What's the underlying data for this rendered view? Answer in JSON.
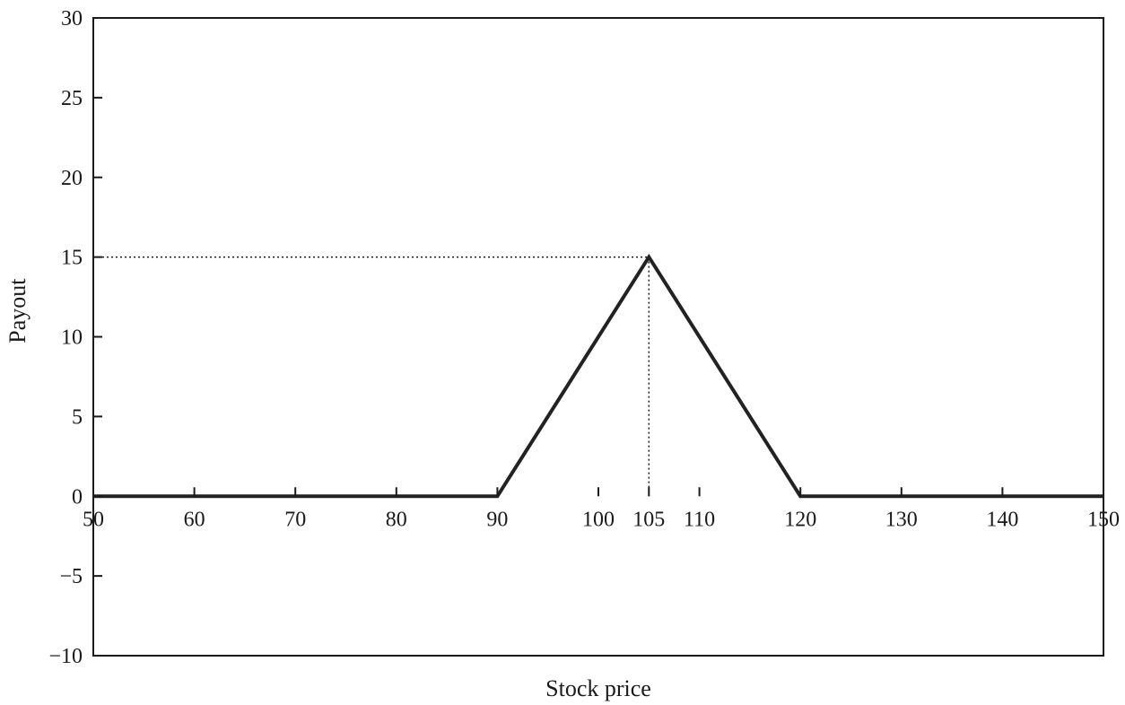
{
  "chart_data": {
    "type": "line",
    "title": "",
    "xlabel": "Stock price",
    "ylabel": "Payout",
    "xlim": [
      50,
      150
    ],
    "ylim": [
      -10,
      30
    ],
    "x_ticks": [
      50,
      60,
      70,
      80,
      90,
      100,
      105,
      110,
      120,
      130,
      140,
      150
    ],
    "y_ticks": [
      -10,
      -5,
      0,
      5,
      10,
      15,
      20,
      25,
      30
    ],
    "grid": false,
    "legend": "none",
    "series": [
      {
        "x": [
          50,
          90,
          105,
          120,
          150
        ],
        "y": [
          0,
          0,
          15,
          0,
          0
        ],
        "color": "#222222"
      }
    ],
    "reference_lines": {
      "peak_x": 105,
      "peak_y": 15,
      "style": "dotted"
    }
  }
}
